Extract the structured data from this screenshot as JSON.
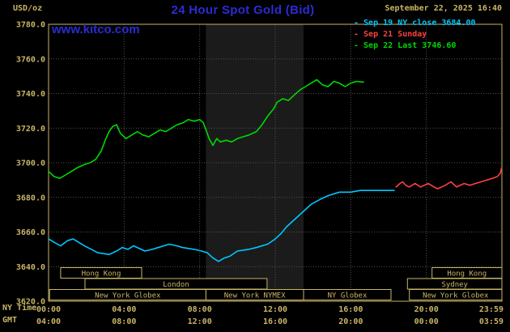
{
  "header": {
    "unit_label": "USD/oz",
    "title": "24 Hour Spot Gold (Bid)",
    "datetime": "September 22, 2025 16:40",
    "watermark": "www.kitco.com"
  },
  "axis": {
    "ny_time_label": "NY Time",
    "gmt_label": "GMT"
  },
  "legend": [
    {
      "label": "- Sep 19 NY close 3684.00",
      "color": "#00c8ff"
    },
    {
      "label": "- Sep 21 Sunday",
      "color": "#ff4040"
    },
    {
      "label": "- Sep 22 Last 3746.60",
      "color": "#00d800"
    }
  ],
  "colors": {
    "background": "#000000",
    "tan": "#c8b566",
    "title_blue": "#2b2bd5",
    "grid": "#525252",
    "band": "#1b1b1b",
    "cyan": "#00c8ff",
    "red": "#ff4040",
    "green": "#00d800"
  },
  "chart_data": {
    "type": "line",
    "title": "24 Hour Spot Gold (Bid)",
    "ylabel": "USD/oz",
    "x_unit": "NY time, hours",
    "xlim": [
      0,
      24
    ],
    "ylim": [
      3620,
      3780
    ],
    "grid": "dotted",
    "legend_position": "top-right",
    "y_ticks": [
      {
        "v": 3780,
        "label": "3780.0"
      },
      {
        "v": 3760,
        "label": "3760.0"
      },
      {
        "v": 3740,
        "label": "3740.0"
      },
      {
        "v": 3720,
        "label": "3720.0"
      },
      {
        "v": 3700,
        "label": "3700.0"
      },
      {
        "v": 3680,
        "label": "3680.0"
      },
      {
        "v": 3660,
        "label": "3660.0"
      },
      {
        "v": 3640,
        "label": "3640.0"
      },
      {
        "v": 3620,
        "label": "3620.0"
      }
    ],
    "x_ticks": [
      {
        "h": 0,
        "ny": "00:00",
        "gmt": "04:00"
      },
      {
        "h": 4,
        "ny": "04:00",
        "gmt": "08:00"
      },
      {
        "h": 8,
        "ny": "08:00",
        "gmt": "12:00"
      },
      {
        "h": 12,
        "ny": "12:00",
        "gmt": "16:00"
      },
      {
        "h": 16,
        "ny": "16:00",
        "gmt": "20:00"
      },
      {
        "h": 20,
        "ny": "20:00",
        "gmt": "00:00"
      },
      {
        "h": 23.983,
        "ny": "23:59",
        "gmt": "03:59",
        "anchor": "end"
      }
    ],
    "grid_hours": [
      4,
      8,
      12,
      16,
      20
    ],
    "nymex_band_hours": [
      8.33,
      13.5
    ],
    "series": [
      {
        "id": "sep19",
        "name": "Sep 19 NY close",
        "close": 3684.0,
        "color": "#00c8ff",
        "points": [
          [
            0,
            3656
          ],
          [
            0.3,
            3654
          ],
          [
            0.64,
            3652
          ],
          [
            1.0,
            3655
          ],
          [
            1.3,
            3656
          ],
          [
            1.9,
            3652
          ],
          [
            2.6,
            3648
          ],
          [
            3.2,
            3647
          ],
          [
            3.6,
            3649
          ],
          [
            3.9,
            3651
          ],
          [
            4.2,
            3650
          ],
          [
            4.5,
            3652
          ],
          [
            5.1,
            3649
          ],
          [
            5.5,
            3650
          ],
          [
            5.8,
            3651
          ],
          [
            6.4,
            3653
          ],
          [
            6.8,
            3652
          ],
          [
            7.1,
            3651
          ],
          [
            7.7,
            3650
          ],
          [
            8.1,
            3649
          ],
          [
            8.4,
            3648
          ],
          [
            8.7,
            3645
          ],
          [
            9.0,
            3643
          ],
          [
            9.3,
            3645
          ],
          [
            9.6,
            3646
          ],
          [
            10.0,
            3649
          ],
          [
            10.6,
            3650
          ],
          [
            11.0,
            3651
          ],
          [
            11.6,
            3653
          ],
          [
            12.0,
            3656
          ],
          [
            12.3,
            3659
          ],
          [
            12.6,
            3663
          ],
          [
            13.1,
            3668
          ],
          [
            13.5,
            3672
          ],
          [
            13.9,
            3676
          ],
          [
            14.4,
            3679
          ],
          [
            14.8,
            3681
          ],
          [
            15.4,
            3683
          ],
          [
            16.0,
            3683
          ],
          [
            16.5,
            3684
          ],
          [
            17.2,
            3684
          ],
          [
            18.3,
            3684
          ]
        ]
      },
      {
        "id": "sep21",
        "name": "Sep 21 Sunday",
        "color": "#ff4040",
        "points": [
          [
            18.4,
            3686
          ],
          [
            18.6,
            3688
          ],
          [
            18.75,
            3689
          ],
          [
            18.9,
            3687
          ],
          [
            19.1,
            3686
          ],
          [
            19.4,
            3688
          ],
          [
            19.7,
            3686
          ],
          [
            20.1,
            3688
          ],
          [
            20.4,
            3686
          ],
          [
            20.6,
            3685
          ],
          [
            21.0,
            3687
          ],
          [
            21.3,
            3689
          ],
          [
            21.6,
            3686
          ],
          [
            22.0,
            3688
          ],
          [
            22.3,
            3687
          ],
          [
            22.6,
            3688
          ],
          [
            22.9,
            3689
          ],
          [
            23.2,
            3690
          ],
          [
            23.5,
            3691
          ],
          [
            23.75,
            3692
          ],
          [
            23.92,
            3694
          ],
          [
            23.98,
            3697
          ]
        ]
      },
      {
        "id": "sep22",
        "name": "Sep 22 Last",
        "last": 3746.6,
        "color": "#00d800",
        "points": [
          [
            0,
            3695
          ],
          [
            0.3,
            3692
          ],
          [
            0.6,
            3691
          ],
          [
            0.9,
            3693
          ],
          [
            1.2,
            3695
          ],
          [
            1.5,
            3697
          ],
          [
            1.9,
            3699
          ],
          [
            2.2,
            3700
          ],
          [
            2.5,
            3702
          ],
          [
            2.8,
            3707
          ],
          [
            3.0,
            3713
          ],
          [
            3.2,
            3718
          ],
          [
            3.4,
            3721
          ],
          [
            3.6,
            3722
          ],
          [
            3.8,
            3717
          ],
          [
            4.1,
            3714
          ],
          [
            4.4,
            3716
          ],
          [
            4.7,
            3718
          ],
          [
            5.0,
            3716
          ],
          [
            5.3,
            3715
          ],
          [
            5.6,
            3717
          ],
          [
            5.9,
            3719
          ],
          [
            6.2,
            3718
          ],
          [
            6.5,
            3720
          ],
          [
            6.8,
            3722
          ],
          [
            7.1,
            3723
          ],
          [
            7.4,
            3725
          ],
          [
            7.7,
            3724
          ],
          [
            8.0,
            3725
          ],
          [
            8.2,
            3723
          ],
          [
            8.5,
            3714
          ],
          [
            8.7,
            3710
          ],
          [
            8.9,
            3714
          ],
          [
            9.1,
            3712
          ],
          [
            9.4,
            3713
          ],
          [
            9.7,
            3712
          ],
          [
            10.0,
            3714
          ],
          [
            10.3,
            3715
          ],
          [
            10.6,
            3716
          ],
          [
            11.0,
            3718
          ],
          [
            11.3,
            3722
          ],
          [
            11.6,
            3727
          ],
          [
            11.9,
            3731
          ],
          [
            12.1,
            3735
          ],
          [
            12.4,
            3737
          ],
          [
            12.7,
            3736
          ],
          [
            13.0,
            3739
          ],
          [
            13.3,
            3742
          ],
          [
            13.6,
            3744
          ],
          [
            13.9,
            3746
          ],
          [
            14.2,
            3748
          ],
          [
            14.5,
            3745
          ],
          [
            14.8,
            3744
          ],
          [
            15.1,
            3747
          ],
          [
            15.4,
            3746
          ],
          [
            15.7,
            3744
          ],
          [
            16.0,
            3746
          ],
          [
            16.3,
            3747
          ],
          [
            16.67,
            3746.6
          ]
        ]
      }
    ],
    "sessions": [
      {
        "label": "Hong Kong",
        "row": 0,
        "start": 0.64,
        "end": 4.93
      },
      {
        "label": "Hong Kong",
        "row": 0,
        "start": 20.3,
        "end": 24
      },
      {
        "label": "London",
        "row": 1,
        "start": 1.93,
        "end": 11.57
      },
      {
        "label": "Sydney",
        "row": 1,
        "start": 19.0,
        "end": 24
      },
      {
        "label": "New York Globex",
        "row": 2,
        "start": 0.05,
        "end": 8.33
      },
      {
        "label": "New York NYMEX",
        "row": 2,
        "start": 8.33,
        "end": 13.5
      },
      {
        "label": "NY Globex",
        "row": 2,
        "start": 13.5,
        "end": 18.13
      },
      {
        "label": "New York Globex",
        "row": 2,
        "start": 19.1,
        "end": 24
      }
    ]
  }
}
